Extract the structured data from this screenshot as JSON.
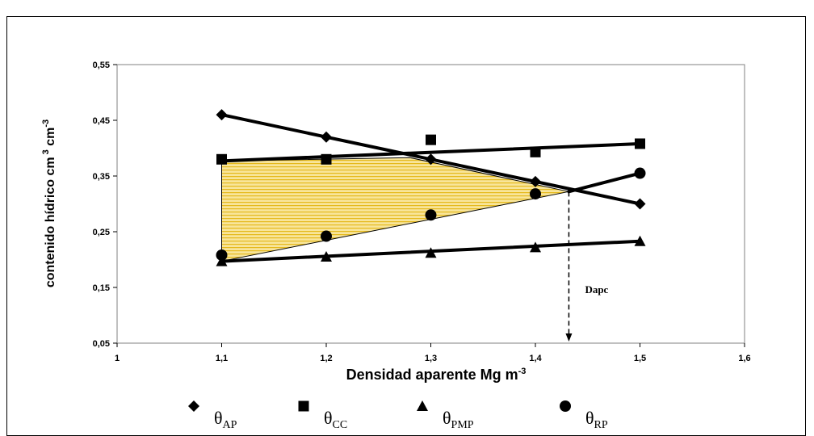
{
  "chart_data": {
    "type": "line",
    "xlabel": "Densidad aparente  Mg m",
    "xlabel_sup": "-3",
    "ylabel": "contenido hídrico cm",
    "ylabel_sup1": "3",
    "ylabel_mid": " cm",
    "ylabel_sup2": "-3",
    "xlim": [
      1,
      1.6
    ],
    "ylim": [
      0.05,
      0.55
    ],
    "x_ticks": [
      "1",
      "1,1",
      "1,2",
      "1,3",
      "1,4",
      "1,5",
      "1,6"
    ],
    "x_tick_values": [
      1,
      1.1,
      1.2,
      1.3,
      1.4,
      1.5,
      1.6
    ],
    "y_ticks": [
      "0,55",
      "0,45",
      "0,35",
      "0,25",
      "0,15",
      "0,05"
    ],
    "y_tick_values": [
      0.55,
      0.45,
      0.35,
      0.25,
      0.15,
      0.05
    ],
    "grid": false,
    "legend_position": "bottom",
    "series": [
      {
        "name": "θ",
        "sub": "AP",
        "marker": "diamond",
        "x": [
          1.1,
          1.2,
          1.3,
          1.4,
          1.5
        ],
        "values": [
          0.46,
          0.42,
          0.38,
          0.34,
          0.3
        ],
        "trend": [
          [
            1.1,
            0.46
          ],
          [
            1.5,
            0.3
          ]
        ]
      },
      {
        "name": "θ",
        "sub": "CC",
        "marker": "square",
        "x": [
          1.1,
          1.2,
          1.3,
          1.4,
          1.5
        ],
        "values": [
          0.38,
          0.38,
          0.415,
          0.393,
          0.408
        ],
        "trend": [
          [
            1.1,
            0.377
          ],
          [
            1.5,
            0.408
          ]
        ]
      },
      {
        "name": "θ",
        "sub": "PMP",
        "marker": "triangle",
        "x": [
          1.1,
          1.2,
          1.3,
          1.4,
          1.5
        ],
        "values": [
          0.197,
          0.205,
          0.212,
          0.222,
          0.233
        ],
        "trend": [
          [
            1.1,
            0.197
          ],
          [
            1.5,
            0.233
          ]
        ]
      },
      {
        "name": "θ",
        "sub": "RP",
        "marker": "circle",
        "x": [
          1.1,
          1.2,
          1.3,
          1.4,
          1.5
        ],
        "values": [
          0.208,
          0.242,
          0.28,
          0.318,
          0.355
        ],
        "trend": [
          [
            1.432,
            0.322
          ],
          [
            1.5,
            0.355
          ]
        ]
      }
    ],
    "shaded_region": [
      [
        1.1,
        0.377
      ],
      [
        1.28,
        0.383
      ],
      [
        1.432,
        0.322
      ],
      [
        1.1,
        0.197
      ]
    ],
    "annotation": {
      "label": "Dapc",
      "x": 1.432,
      "y_from": 0.322,
      "y_to": 0.05
    }
  },
  "colors": {
    "line": "#000000",
    "shade_fill": "#f8e59a",
    "shade_stripe": "#e5b91c",
    "border": "#000000"
  }
}
